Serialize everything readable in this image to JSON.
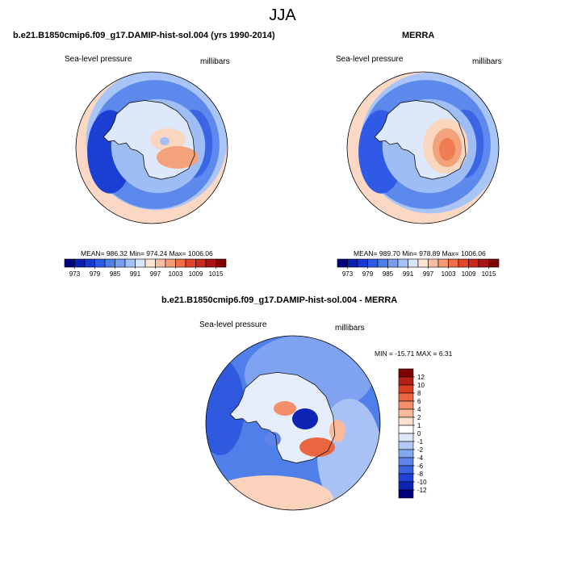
{
  "page": {
    "title": "JJA"
  },
  "colors": {
    "abs_scale": [
      "#00007f",
      "#0a1fb0",
      "#1739cf",
      "#2f5ae6",
      "#4e7ee8",
      "#769df0",
      "#a3c1f6",
      "#d6e5fa",
      "#fde3d2",
      "#f9bea1",
      "#f49a76",
      "#ee6f48",
      "#e3452a",
      "#c9281c",
      "#a91517",
      "#7f0000"
    ],
    "diff_scale": [
      "#00007f",
      "#0d24b5",
      "#1f41d6",
      "#3a62e3",
      "#5d85ea",
      "#86a7f1",
      "#b2c9f7",
      "#dde9fb",
      "#ffffff",
      "#fde0cf",
      "#f9b99a",
      "#f3906b",
      "#ea6640",
      "#db3f22",
      "#b51e16",
      "#7f0000"
    ],
    "ocean": "#4d7de8",
    "coast": "#111111"
  },
  "chart_data": [
    {
      "type": "heatmap",
      "panel": "model",
      "title": "b.e21.B1850cmip6.f09_g17.DAMIP-hist-sol.004 (yrs 1990-2014)",
      "left_label": "Sea-level pressure",
      "right_label": "millibars",
      "stats": {
        "mean": "986.32",
        "min": "974.24",
        "max": "1006.06"
      },
      "stats_text": "MEAN= 986.32   Min= 974.24   Max= 1006.06",
      "colorbar_ticks": [
        "973",
        "979",
        "985",
        "991",
        "997",
        "1003",
        "1009",
        "1015"
      ],
      "colorbar_range": [
        970,
        1018
      ],
      "projection": "south-polar-stereographic"
    },
    {
      "type": "heatmap",
      "panel": "obs",
      "title": "MERRA",
      "left_label": "Sea-level pressure",
      "right_label": "millibars",
      "stats": {
        "mean": "989.70",
        "min": "978.89",
        "max": "1006.06"
      },
      "stats_text": "MEAN= 989.70   Min= 978.89   Max= 1006.06",
      "colorbar_ticks": [
        "973",
        "979",
        "985",
        "991",
        "997",
        "1003",
        "1009",
        "1015"
      ],
      "colorbar_range": [
        970,
        1018
      ],
      "projection": "south-polar-stereographic"
    },
    {
      "type": "heatmap",
      "panel": "difference",
      "title": "b.e21.B1850cmip6.f09_g17.DAMIP-hist-sol.004 - MERRA",
      "left_label": "Sea-level pressure",
      "right_label": "millibars",
      "stats": {
        "min": "-15.71",
        "max": "6.31"
      },
      "stats_text": "MIN = -15.71 MAX =   6.31",
      "colorbar_ticks": [
        "12",
        "10",
        "8",
        "6",
        "4",
        "2",
        "1",
        "0",
        "-1",
        "-2",
        "-4",
        "-6",
        "-8",
        "-10",
        "-12"
      ],
      "colorbar_orientation": "vertical",
      "projection": "south-polar-stereographic"
    }
  ]
}
